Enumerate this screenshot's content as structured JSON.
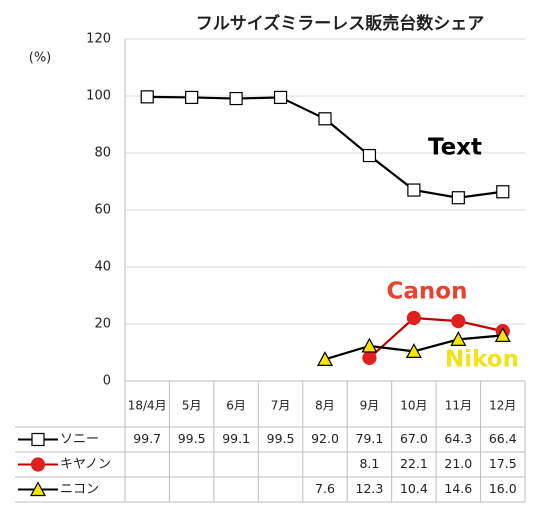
{
  "chart_data": {
    "type": "line",
    "title": "フルサイズミラーレス販売台数シェア",
    "y_label": "(%)",
    "categories": [
      "18/4月",
      "5月",
      "6月",
      "7月",
      "8月",
      "9月",
      "10月",
      "11月",
      "12月"
    ],
    "ylim": [
      0,
      120
    ],
    "yticks": [
      0,
      20,
      40,
      60,
      80,
      100,
      120
    ],
    "grid": true,
    "series": [
      {
        "name": "ソニー",
        "color": "#000000",
        "marker": "square",
        "marker_fill": "#ffffff",
        "values": [
          99.7,
          99.5,
          99.1,
          99.5,
          92.0,
          79.1,
          67.0,
          64.3,
          66.4
        ],
        "value_labels": [
          "99.7",
          "99.5",
          "99.1",
          "99.5",
          "92.0",
          "79.1",
          "67.0",
          "64.3",
          "66.4"
        ]
      },
      {
        "name": "キヤノン",
        "color": "#c00000",
        "marker": "circle",
        "marker_fill": "#e02020",
        "values": [
          null,
          null,
          null,
          null,
          null,
          8.1,
          22.1,
          21.0,
          17.5
        ],
        "value_labels": [
          null,
          null,
          null,
          null,
          null,
          "8.1",
          "22.1",
          "21.0",
          "17.5"
        ]
      },
      {
        "name": "ニコン",
        "color": "#000000",
        "marker": "triangle",
        "marker_fill": "#f5e600",
        "values": [
          null,
          null,
          null,
          null,
          7.6,
          12.3,
          10.4,
          14.6,
          16.0
        ],
        "value_labels": [
          null,
          null,
          null,
          null,
          "7.6",
          "12.3",
          "10.4",
          "14.6",
          "16.0"
        ]
      }
    ],
    "annotations": [
      {
        "text": "Text",
        "color": "#000000"
      },
      {
        "text": "Canon",
        "color": "#e8432f"
      },
      {
        "text": "Nikon",
        "color": "#f2e21a"
      }
    ]
  }
}
